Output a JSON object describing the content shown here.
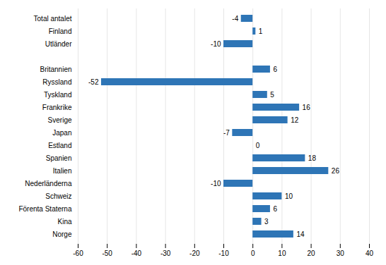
{
  "chart_data": {
    "type": "bar",
    "orientation": "horizontal",
    "categories": [
      "Total antalet",
      "Finland",
      "Utländer",
      null,
      "Britannien",
      "Ryssland",
      "Tyskland",
      "Frankrike",
      "Sverige",
      "Japan",
      "Estland",
      "Spanien",
      "Italien",
      "Nederländerna",
      "Schweiz",
      "Förenta Staterna",
      "Kina",
      "Norge"
    ],
    "values": [
      -4,
      1,
      -10,
      null,
      6,
      -52,
      5,
      16,
      12,
      -7,
      0,
      18,
      26,
      -10,
      10,
      6,
      3,
      14
    ],
    "color": "#2E75B6",
    "xlim": [
      -60,
      40
    ],
    "xticks": [
      -60,
      -50,
      -40,
      -30,
      -20,
      -10,
      0,
      10,
      20,
      30,
      40
    ],
    "grid": true,
    "data_labels": true
  }
}
